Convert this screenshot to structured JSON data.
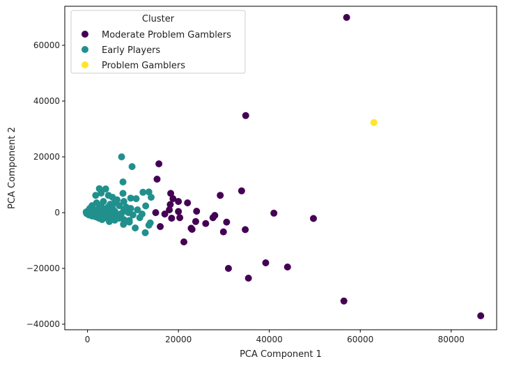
{
  "chart_data": {
    "type": "scatter",
    "xlabel": "PCA Component 1",
    "ylabel": "PCA Component 2",
    "xlim": [
      -5000,
      90000
    ],
    "ylim": [
      -42000,
      74000
    ],
    "xticks": [
      0,
      20000,
      40000,
      60000,
      80000
    ],
    "yticks": [
      -40000,
      -20000,
      0,
      20000,
      40000,
      60000
    ],
    "grid": false,
    "legend": {
      "title": "Cluster",
      "placement": "top-left"
    },
    "series": [
      {
        "name": "Moderate Problem Gamblers",
        "color": "#440154",
        "points": [
          [
            57000,
            70000
          ],
          [
            34800,
            34800
          ],
          [
            15700,
            17500
          ],
          [
            15300,
            12000
          ],
          [
            33900,
            7800
          ],
          [
            29200,
            6200
          ],
          [
            18300,
            6900
          ],
          [
            18800,
            5000
          ],
          [
            20000,
            4000
          ],
          [
            22000,
            3500
          ],
          [
            18200,
            2900
          ],
          [
            24000,
            500
          ],
          [
            20000,
            400
          ],
          [
            18000,
            1000
          ],
          [
            15000,
            0
          ],
          [
            17000,
            -500
          ],
          [
            28000,
            -1000
          ],
          [
            27600,
            -1800
          ],
          [
            20300,
            -1800
          ],
          [
            18500,
            -2000
          ],
          [
            23800,
            -3200
          ],
          [
            30600,
            -3400
          ],
          [
            26000,
            -3900
          ],
          [
            16000,
            -5000
          ],
          [
            22800,
            -5600
          ],
          [
            23000,
            -6000
          ],
          [
            34700,
            -6100
          ],
          [
            29900,
            -6900
          ],
          [
            41000,
            -200
          ],
          [
            49700,
            -2100
          ],
          [
            21200,
            -10500
          ],
          [
            39200,
            -18000
          ],
          [
            44000,
            -19500
          ],
          [
            31000,
            -20000
          ],
          [
            35400,
            -23500
          ],
          [
            56400,
            -31700
          ],
          [
            86500,
            -37000
          ]
        ]
      },
      {
        "name": "Early Players",
        "color": "#21908d",
        "points": [
          [
            7500,
            20000
          ],
          [
            9800,
            16500
          ],
          [
            7800,
            11000
          ],
          [
            13500,
            7400
          ],
          [
            12200,
            7300
          ],
          [
            7800,
            6900
          ],
          [
            14000,
            5500
          ],
          [
            9500,
            5200
          ],
          [
            10700,
            5000
          ],
          [
            5500,
            5500
          ],
          [
            6500,
            4600
          ],
          [
            4000,
            8500
          ],
          [
            2600,
            8600
          ],
          [
            3000,
            7000
          ],
          [
            1800,
            6200
          ],
          [
            4600,
            6200
          ],
          [
            8000,
            4000
          ],
          [
            12800,
            2400
          ],
          [
            2000,
            3500
          ],
          [
            5000,
            3000
          ],
          [
            3500,
            4000
          ],
          [
            6000,
            3500
          ],
          [
            1000,
            2500
          ],
          [
            3000,
            2500
          ],
          [
            4500,
            2000
          ],
          [
            7000,
            2500
          ],
          [
            8500,
            2000
          ],
          [
            9500,
            1500
          ],
          [
            2500,
            1500
          ],
          [
            5500,
            1500
          ],
          [
            8000,
            1000
          ],
          [
            11000,
            1000
          ],
          [
            500,
            1500
          ],
          [
            1500,
            1000
          ],
          [
            3500,
            800
          ],
          [
            6000,
            500
          ],
          [
            9000,
            0
          ],
          [
            12000,
            -500
          ],
          [
            0,
            500
          ],
          [
            200,
            0
          ],
          [
            800,
            -500
          ],
          [
            1200,
            200
          ],
          [
            2000,
            300
          ],
          [
            2800,
            0
          ],
          [
            3500,
            -200
          ],
          [
            4200,
            300
          ],
          [
            5000,
            -300
          ],
          [
            6500,
            -500
          ],
          [
            7500,
            -300
          ],
          [
            10000,
            -800
          ],
          [
            -300,
            200
          ],
          [
            -200,
            -300
          ],
          [
            300,
            -800
          ],
          [
            1000,
            -1200
          ],
          [
            1800,
            -1500
          ],
          [
            2500,
            -2000
          ],
          [
            3200,
            -2500
          ],
          [
            4000,
            -1800
          ],
          [
            5200,
            -2200
          ],
          [
            6000,
            -2700
          ],
          [
            7000,
            -2000
          ],
          [
            8000,
            -2500
          ],
          [
            9200,
            -2800
          ],
          [
            4800,
            -3200
          ],
          [
            7900,
            -4200
          ],
          [
            9200,
            -3400
          ],
          [
            10500,
            -5500
          ],
          [
            12700,
            -7200
          ],
          [
            13500,
            -4500
          ],
          [
            13800,
            -3700
          ],
          [
            500,
            300
          ],
          [
            900,
            700
          ],
          [
            1400,
            -300
          ],
          [
            2200,
            1000
          ],
          [
            3800,
            1200
          ],
          [
            4300,
            -900
          ],
          [
            5600,
            800
          ],
          [
            6200,
            -1200
          ],
          [
            8800,
            500
          ],
          [
            11500,
            -1800
          ]
        ]
      },
      {
        "name": "Problem Gamblers",
        "color": "#fde725",
        "points": [
          [
            63000,
            32300
          ]
        ]
      }
    ]
  }
}
